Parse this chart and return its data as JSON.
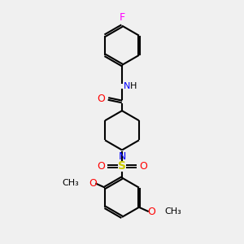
{
  "bg_color": "#f0f0f0",
  "bond_color": "#000000",
  "N_color": "#0000ff",
  "O_color": "#ff0000",
  "F_color": "#ff00ff",
  "S_color": "#cccc00",
  "fig_w": 3.0,
  "fig_h": 3.0,
  "dpi": 100,
  "xlim": [
    0,
    10
  ],
  "ylim": [
    0,
    10
  ]
}
